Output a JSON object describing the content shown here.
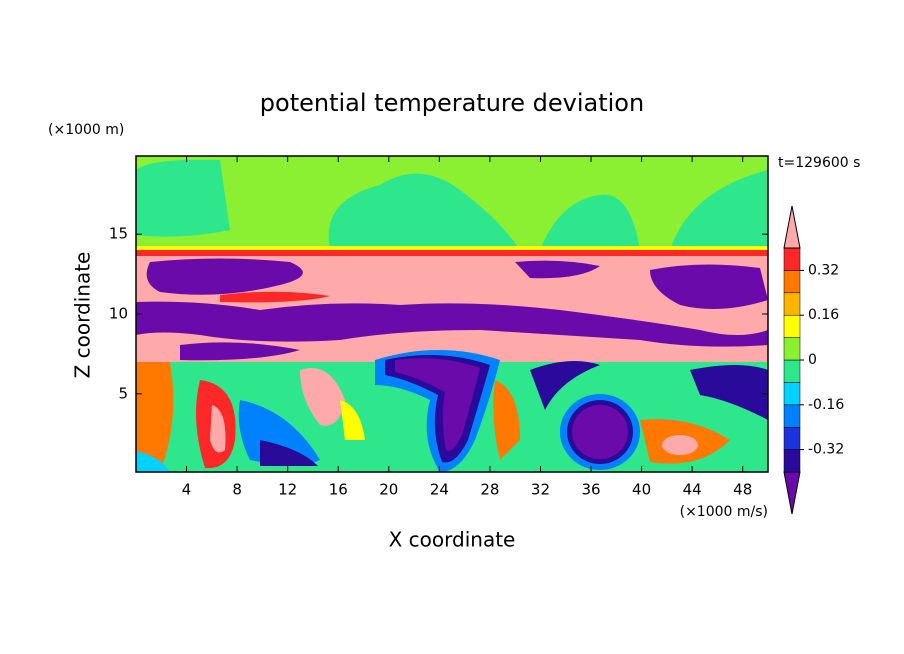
{
  "chart_data": {
    "type": "contour",
    "title": "potential temperature deviation",
    "xlabel": "X coordinate",
    "ylabel": "Z coordinate",
    "x_unit": "(×1000 m/s)",
    "y_unit": "(×1000 m)",
    "annotation": "t=129600 s",
    "xlim": [
      0,
      50
    ],
    "ylim": [
      0.1,
      19.9
    ],
    "xticks": [
      4,
      8,
      12,
      16,
      20,
      24,
      28,
      32,
      36,
      40,
      44,
      48
    ],
    "yticks": [
      5,
      10,
      15
    ],
    "colorbar": {
      "levels": [
        -0.4,
        -0.32,
        -0.24,
        -0.16,
        -0.08,
        0,
        0.08,
        0.16,
        0.24,
        0.32,
        0.4
      ],
      "colors": [
        "#6a0aaa",
        "#2a0a9a",
        "#1e32dc",
        "#0082ff",
        "#00d2ff",
        "#2ee68c",
        "#8cf032",
        "#ffff00",
        "#ffb400",
        "#ff7800",
        "#ff2828",
        "#ffaaaa"
      ],
      "ticks": [
        0.32,
        0.16,
        0,
        -0.16,
        -0.32
      ]
    }
  }
}
